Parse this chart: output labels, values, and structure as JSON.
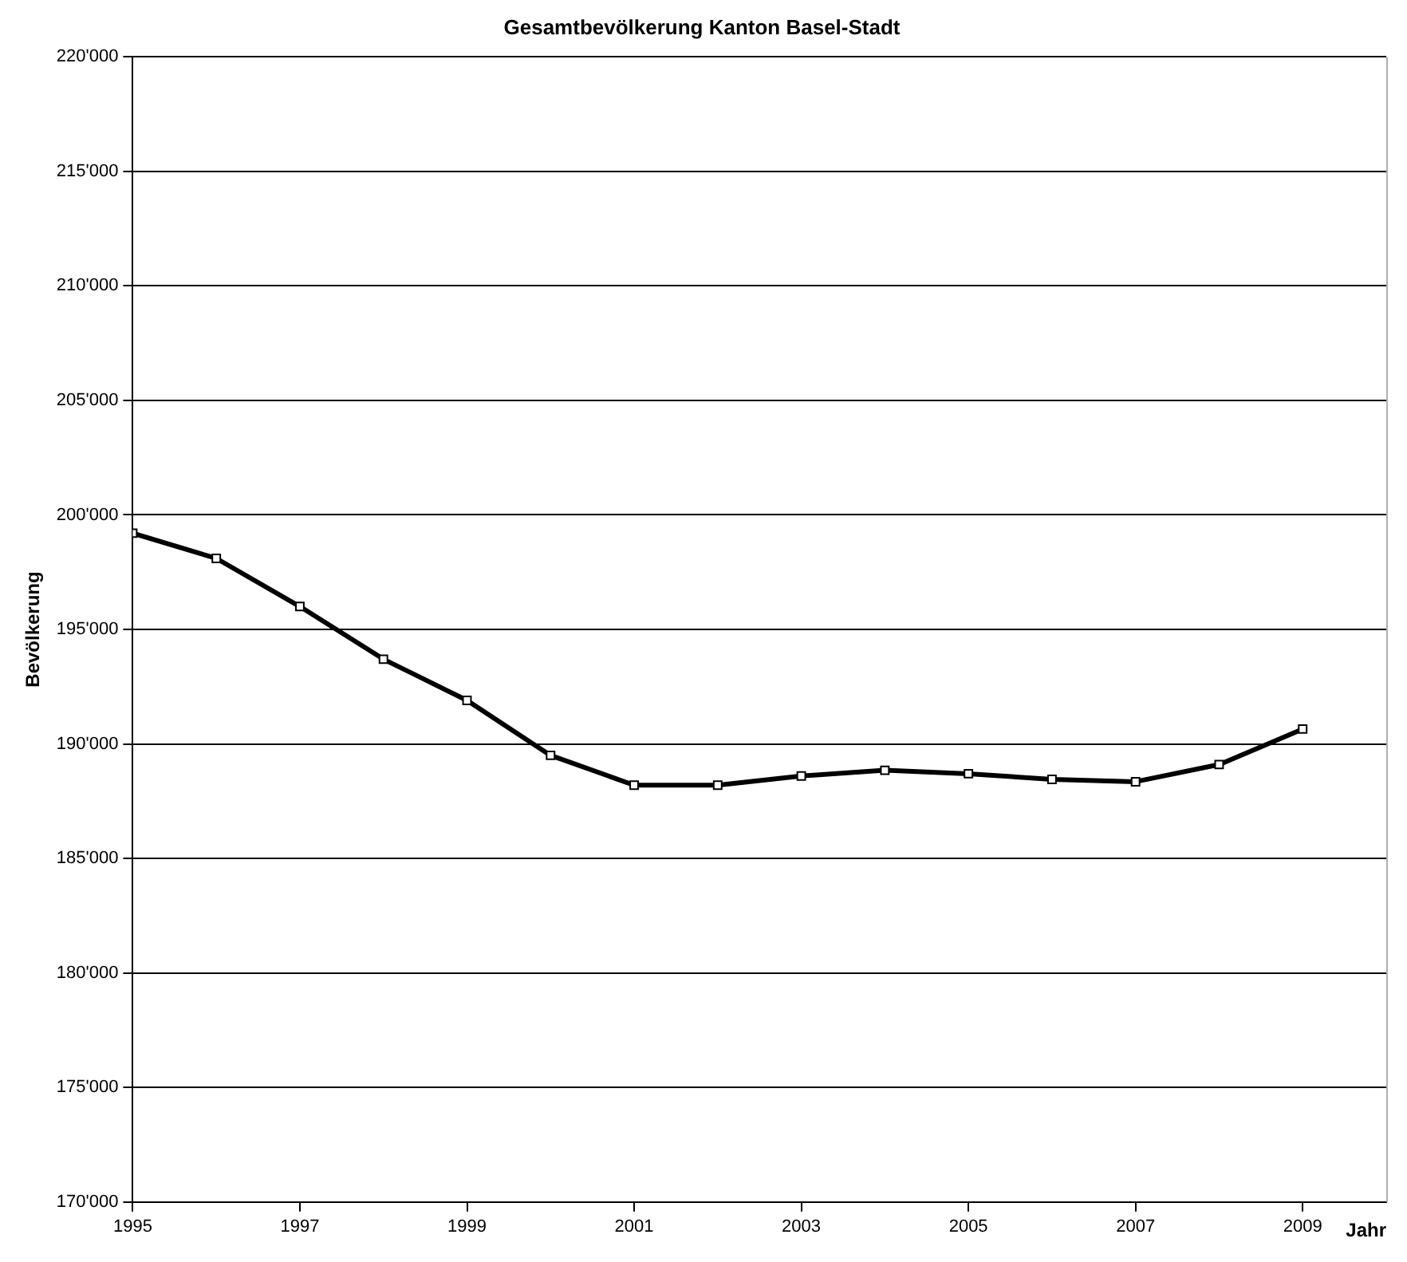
{
  "chart_data": {
    "type": "line",
    "title": "Gesamtbevölkerung Kanton Basel-Stadt",
    "xlabel": "Jahr",
    "ylabel": "Bevölkerung",
    "x": [
      1995,
      1996,
      1997,
      1998,
      1999,
      2000,
      2001,
      2002,
      2003,
      2004,
      2005,
      2006,
      2007,
      2008,
      2009
    ],
    "series": [
      {
        "color": "#000000",
        "values": [
          199200,
          198100,
          196000,
          193700,
          191900,
          189500,
          188200,
          188200,
          188600,
          188850,
          188700,
          188450,
          188350,
          189100,
          190650
        ]
      }
    ],
    "xlim": [
      1995,
      2010
    ],
    "xticks": [
      1995,
      1997,
      1999,
      2001,
      2003,
      2005,
      2007,
      2009
    ],
    "ylim": [
      170000,
      220000
    ],
    "yticks": [
      {
        "value": 170000,
        "label": "170'000"
      },
      {
        "value": 175000,
        "label": "175'000"
      },
      {
        "value": 180000,
        "label": "180'000"
      },
      {
        "value": 185000,
        "label": "185'000"
      },
      {
        "value": 190000,
        "label": "190'000"
      },
      {
        "value": 195000,
        "label": "195'000"
      },
      {
        "value": 200000,
        "label": "200'000"
      },
      {
        "value": 205000,
        "label": "205'000"
      },
      {
        "value": 210000,
        "label": "210'000"
      },
      {
        "value": 215000,
        "label": "215'000"
      },
      {
        "value": 220000,
        "label": "220'000"
      }
    ],
    "grid": "y",
    "legend": false,
    "marker": "square",
    "line_style": "solid"
  }
}
